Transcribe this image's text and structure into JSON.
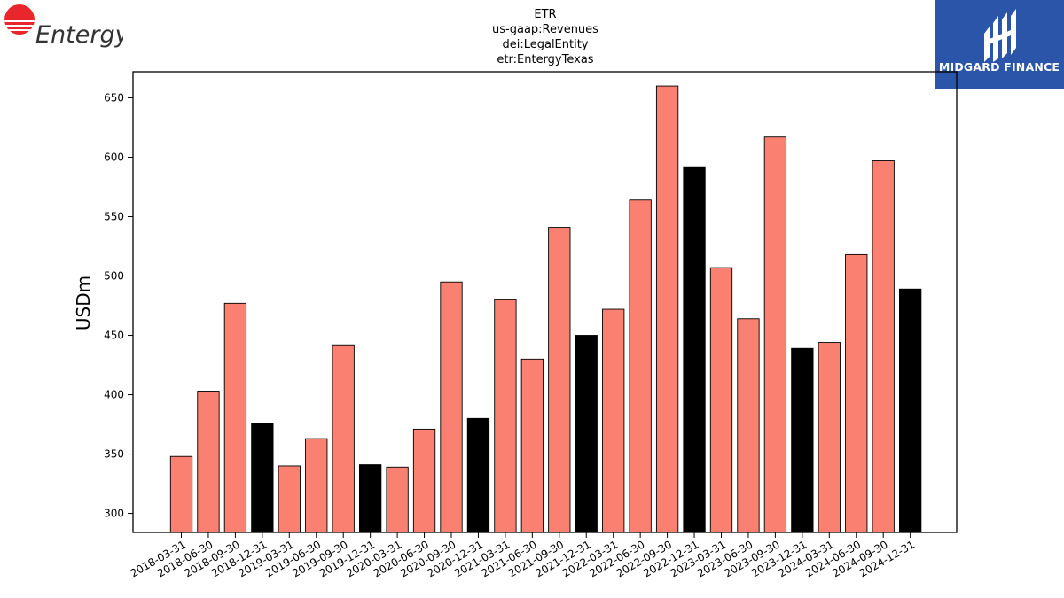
{
  "logos": {
    "left_brand": "Entergy",
    "right_brand": "MIDGARD FINANCE",
    "accent_red": "#e8262b",
    "accent_blue": "#2a55a8"
  },
  "chart_data": {
    "type": "bar",
    "title_lines": [
      "ETR",
      "us-gaap:Revenues",
      "dei:LegalEntity",
      "etr:EntergyTexas"
    ],
    "xlabel": "",
    "ylabel": "USDm",
    "ylim": [
      284,
      672
    ],
    "yticks": [
      300,
      350,
      400,
      450,
      500,
      550,
      600,
      650
    ],
    "grid": false,
    "legend": "none",
    "colors": {
      "quarter": "#fa8072",
      "year_end": "#000000",
      "edge": "#000000"
    },
    "categories": [
      "2018-03-31",
      "2018-06-30",
      "2018-09-30",
      "2018-12-31",
      "2019-03-31",
      "2019-06-30",
      "2019-09-30",
      "2019-12-31",
      "2020-03-31",
      "2020-06-30",
      "2020-09-30",
      "2020-12-31",
      "2021-03-31",
      "2021-06-30",
      "2021-09-30",
      "2021-12-31",
      "2022-03-31",
      "2022-06-30",
      "2022-09-30",
      "2022-12-31",
      "2023-03-31",
      "2023-06-30",
      "2023-09-30",
      "2023-12-31",
      "2024-03-31",
      "2024-06-30",
      "2024-09-30",
      "2024-12-31"
    ],
    "values": [
      348,
      403,
      477,
      376,
      340,
      363,
      442,
      341,
      339,
      371,
      495,
      380,
      480,
      430,
      541,
      450,
      472,
      564,
      660,
      592,
      507,
      464,
      617,
      439,
      444,
      518,
      597,
      489
    ],
    "year_end_flags": [
      false,
      false,
      false,
      true,
      false,
      false,
      false,
      true,
      false,
      false,
      false,
      true,
      false,
      false,
      false,
      true,
      false,
      false,
      false,
      true,
      false,
      false,
      false,
      true,
      false,
      false,
      false,
      true
    ]
  }
}
